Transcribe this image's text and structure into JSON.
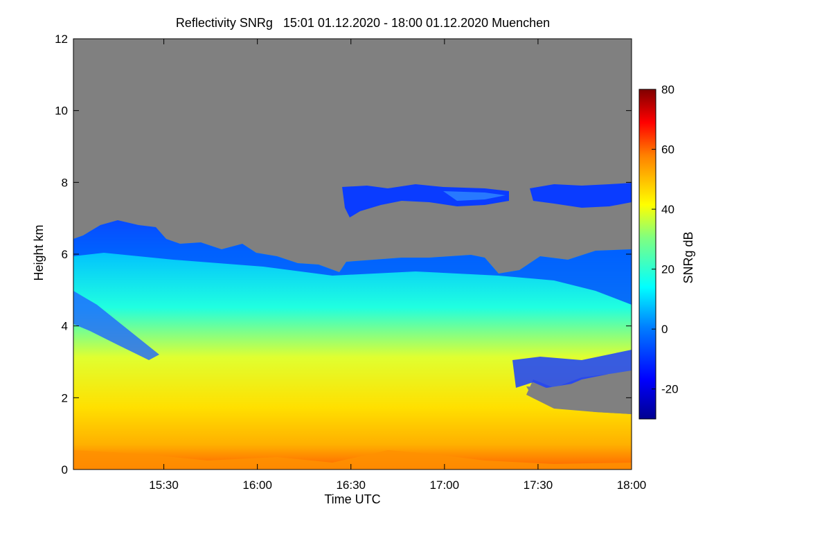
{
  "chart_data": {
    "type": "heatmap",
    "title": "Reflectivity SNRg   15:01 01.12.2020 - 18:00 01.12.2020 Muenchen",
    "xlabel": "Time UTC",
    "ylabel": "Height km",
    "x_range": [
      "15:01",
      "18:00"
    ],
    "y_range": [
      0,
      12
    ],
    "x_ticks": [
      "15:30",
      "16:00",
      "16:30",
      "17:00",
      "17:30",
      "18:00"
    ],
    "y_ticks": [
      "0",
      "2",
      "4",
      "6",
      "8",
      "10",
      "12"
    ],
    "colorbar": {
      "label": "SNRg dB",
      "range": [
        -30,
        80
      ],
      "ticks": [
        "-20",
        "0",
        "20",
        "40",
        "60",
        "80"
      ],
      "colormap": "jet",
      "missing_color": "#808080"
    },
    "description_of_field": {
      "low_cloud_top_km": [
        6.3,
        6.9,
        5.7,
        5.8,
        5.9,
        6.1
      ],
      "cloud_top_times": [
        "15:01",
        "15:20",
        "16:30",
        "17:00",
        "17:35",
        "18:00"
      ],
      "upper_layer": {
        "time_start": "16:26",
        "time_end": "18:00",
        "height_km": [
          7.0,
          7.9
        ]
      },
      "surface_max_dB": 55,
      "gap_region": {
        "time_start": "17:22",
        "time_end": "18:00",
        "height_km": [
          1.5,
          2.5
        ]
      }
    }
  }
}
